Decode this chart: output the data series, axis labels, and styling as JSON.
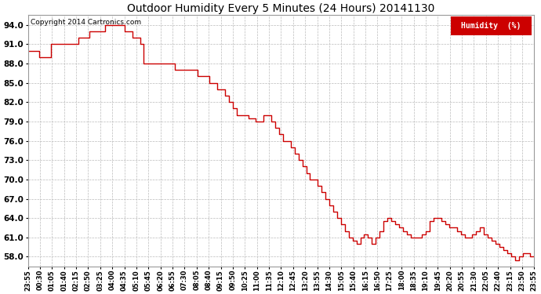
{
  "title": "Outdoor Humidity Every 5 Minutes (24 Hours) 20141130",
  "copyright_text": "Copyright 2014 Cartronics.com",
  "legend_label": "Humidity  (%)",
  "line_color": "#cc0000",
  "background_color": "#ffffff",
  "grid_color": "#bbbbbb",
  "legend_bg": "#cc0000",
  "legend_text_color": "#ffffff",
  "ylim": [
    56.5,
    95.5
  ],
  "yticks": [
    58.0,
    61.0,
    64.0,
    67.0,
    70.0,
    73.0,
    76.0,
    79.0,
    82.0,
    85.0,
    88.0,
    91.0,
    94.0
  ],
  "x_labels": [
    "23:55",
    "00:30",
    "01:05",
    "01:40",
    "02:15",
    "02:50",
    "03:25",
    "04:00",
    "04:35",
    "05:10",
    "05:45",
    "06:20",
    "06:55",
    "07:30",
    "08:05",
    "08:40",
    "09:15",
    "09:50",
    "10:25",
    "11:00",
    "11:35",
    "12:10",
    "12:45",
    "13:20",
    "13:55",
    "14:30",
    "15:05",
    "15:40",
    "16:15",
    "16:50",
    "17:25",
    "18:00",
    "18:35",
    "19:10",
    "19:45",
    "20:20",
    "20:55",
    "21:30",
    "22:05",
    "22:40",
    "23:15",
    "23:50",
    "23:55"
  ],
  "humidity_values": [
    90.0,
    90.0,
    90.0,
    89.0,
    89.0,
    89.0,
    91.0,
    91.0,
    91.0,
    91.0,
    91.0,
    91.0,
    91.0,
    92.0,
    92.0,
    92.0,
    93.0,
    93.0,
    93.0,
    93.0,
    94.0,
    94.0,
    94.0,
    94.0,
    94.0,
    93.0,
    93.0,
    92.0,
    92.0,
    91.0,
    88.0,
    88.0,
    88.0,
    88.0,
    88.0,
    88.0,
    88.0,
    88.0,
    87.0,
    87.0,
    87.0,
    87.0,
    87.0,
    87.0,
    86.0,
    86.0,
    86.0,
    85.0,
    85.0,
    84.0,
    84.0,
    83.0,
    82.0,
    81.0,
    80.0,
    80.0,
    80.0,
    79.5,
    79.5,
    79.0,
    79.0,
    80.0,
    80.0,
    79.0,
    78.0,
    77.0,
    76.0,
    76.0,
    75.0,
    74.0,
    73.0,
    72.0,
    71.0,
    70.0,
    70.0,
    69.0,
    68.0,
    67.0,
    66.0,
    65.0,
    64.0,
    63.0,
    62.0,
    61.0,
    60.5,
    60.0,
    61.0,
    61.5,
    61.0,
    60.0,
    61.0,
    62.0,
    63.5,
    64.0,
    63.5,
    63.0,
    62.5,
    62.0,
    61.5,
    61.0,
    61.0,
    61.0,
    61.5,
    62.0,
    63.5,
    64.0,
    64.0,
    63.5,
    63.0,
    62.5,
    62.5,
    62.0,
    61.5,
    61.0,
    61.0,
    61.5,
    62.0,
    62.5,
    61.5,
    61.0,
    60.5,
    60.0,
    59.5,
    59.0,
    58.5,
    58.0,
    57.5,
    58.0,
    58.5,
    58.5,
    58.0,
    58.0
  ]
}
